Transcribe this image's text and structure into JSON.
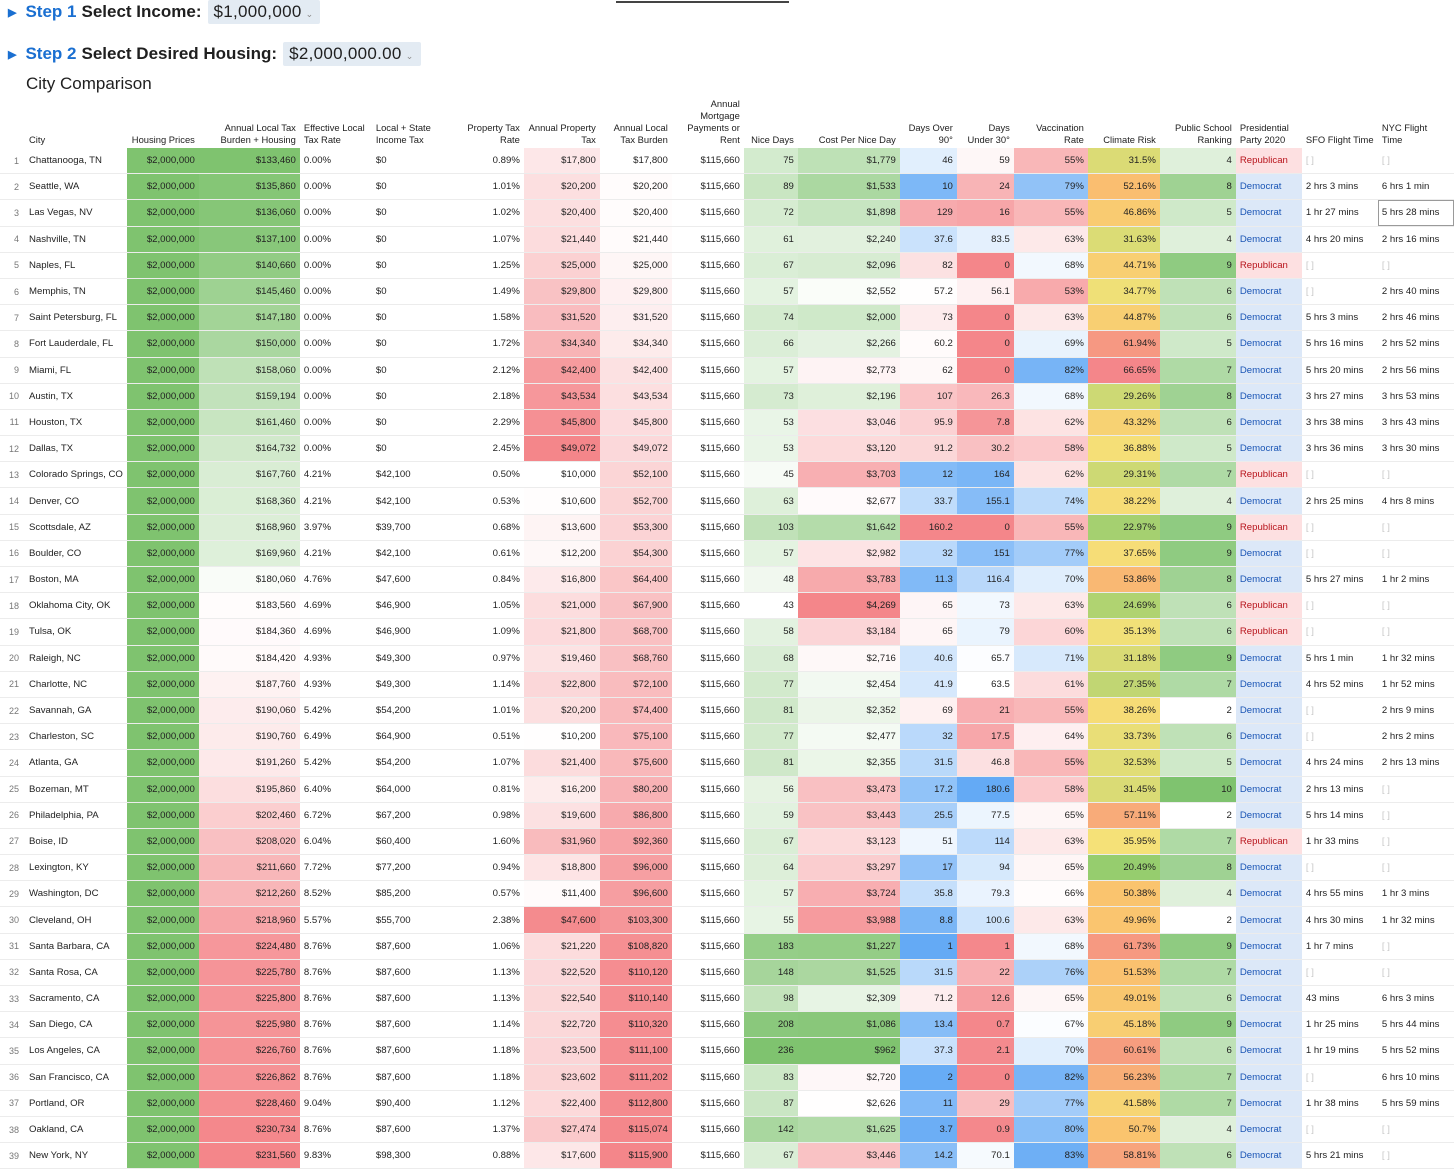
{
  "step1": {
    "label_num": "Step 1",
    "label_text": "Select Income:",
    "value": "$1,000,000"
  },
  "step2": {
    "label_num": "Step 2",
    "label_text": "Select Desired Housing:",
    "value": "$2,000,000.00"
  },
  "section_title": "City Comparison",
  "colors": {
    "blue": "#1a6fd1",
    "democrat": "#1a55b5",
    "republican": "#b8141c",
    "green_max": "#7fc36f",
    "red_max": "#f4868a"
  },
  "headers": [
    "City",
    "Housing Prices",
    "Annual Local Tax Burden + Housing",
    "Effective Local Tax Rate",
    "Local + State Income Tax",
    "Property Tax Rate",
    "Annual Property Tax",
    "Annual Local Tax Burden",
    "Annual Mortgage Payments or Rent",
    "Nice Days",
    "Cost Per Nice Day",
    "Days Over 90°",
    "Days Under 30°",
    "Vaccination Rate",
    "Climate Risk",
    "Public School Ranking",
    "Presidential Party 2020",
    "SFO Flight Time",
    "NYC Flight Time"
  ],
  "rows": [
    [
      "Chattanooga, TN",
      "$2,000,000",
      "$133,460",
      "0.00%",
      "$0",
      "0.89%",
      "$17,800",
      "$17,800",
      "$115,660",
      "75",
      "$1,779",
      "46",
      "59",
      "55%",
      "31.5%",
      "4",
      "Republican",
      "",
      ""
    ],
    [
      "Seattle, WA",
      "$2,000,000",
      "$135,860",
      "0.00%",
      "$0",
      "1.01%",
      "$20,200",
      "$20,200",
      "$115,660",
      "89",
      "$1,533",
      "10",
      "24",
      "79%",
      "52.16%",
      "8",
      "Democrat",
      "2 hrs 3 mins",
      "6 hrs 1 min"
    ],
    [
      "Las Vegas, NV",
      "$2,000,000",
      "$136,060",
      "0.00%",
      "$0",
      "1.02%",
      "$20,400",
      "$20,400",
      "$115,660",
      "72",
      "$1,898",
      "129",
      "16",
      "55%",
      "46.86%",
      "5",
      "Democrat",
      "1 hr 27 mins",
      "5 hrs 28 mins"
    ],
    [
      "Nashville, TN",
      "$2,000,000",
      "$137,100",
      "0.00%",
      "$0",
      "1.07%",
      "$21,440",
      "$21,440",
      "$115,660",
      "61",
      "$2,240",
      "37.6",
      "83.5",
      "63%",
      "31.63%",
      "4",
      "Democrat",
      "4 hrs 20 mins",
      "2 hrs 16 mins"
    ],
    [
      "Naples, FL",
      "$2,000,000",
      "$140,660",
      "0.00%",
      "$0",
      "1.25%",
      "$25,000",
      "$25,000",
      "$115,660",
      "67",
      "$2,096",
      "82",
      "0",
      "68%",
      "44.71%",
      "9",
      "Republican",
      "",
      ""
    ],
    [
      "Memphis, TN",
      "$2,000,000",
      "$145,460",
      "0.00%",
      "$0",
      "1.49%",
      "$29,800",
      "$29,800",
      "$115,660",
      "57",
      "$2,552",
      "57.2",
      "56.1",
      "53%",
      "34.77%",
      "6",
      "Democrat",
      "",
      "2 hrs 40 mins"
    ],
    [
      "Saint Petersburg, FL",
      "$2,000,000",
      "$147,180",
      "0.00%",
      "$0",
      "1.58%",
      "$31,520",
      "$31,520",
      "$115,660",
      "74",
      "$2,000",
      "73",
      "0",
      "63%",
      "44.87%",
      "6",
      "Democrat",
      "5 hrs 3 mins",
      "2 hrs 46 mins"
    ],
    [
      "Fort Lauderdale, FL",
      "$2,000,000",
      "$150,000",
      "0.00%",
      "$0",
      "1.72%",
      "$34,340",
      "$34,340",
      "$115,660",
      "66",
      "$2,266",
      "60.2",
      "0",
      "69%",
      "61.94%",
      "5",
      "Democrat",
      "5 hrs 16 mins",
      "2 hrs 52 mins"
    ],
    [
      "Miami, FL",
      "$2,000,000",
      "$158,060",
      "0.00%",
      "$0",
      "2.12%",
      "$42,400",
      "$42,400",
      "$115,660",
      "57",
      "$2,773",
      "62",
      "0",
      "82%",
      "66.65%",
      "7",
      "Democrat",
      "5 hrs 20 mins",
      "2 hrs 56 mins"
    ],
    [
      "Austin, TX",
      "$2,000,000",
      "$159,194",
      "0.00%",
      "$0",
      "2.18%",
      "$43,534",
      "$43,534",
      "$115,660",
      "73",
      "$2,196",
      "107",
      "26.3",
      "68%",
      "29.26%",
      "8",
      "Democrat",
      "3 hrs 27 mins",
      "3 hrs 53 mins"
    ],
    [
      "Houston, TX",
      "$2,000,000",
      "$161,460",
      "0.00%",
      "$0",
      "2.29%",
      "$45,800",
      "$45,800",
      "$115,660",
      "53",
      "$3,046",
      "95.9",
      "7.8",
      "62%",
      "43.32%",
      "6",
      "Democrat",
      "3 hrs 38 mins",
      "3 hrs 43 mins"
    ],
    [
      "Dallas, TX",
      "$2,000,000",
      "$164,732",
      "0.00%",
      "$0",
      "2.45%",
      "$49,072",
      "$49,072",
      "$115,660",
      "53",
      "$3,120",
      "91.2",
      "30.2",
      "58%",
      "36.88%",
      "5",
      "Democrat",
      "3 hrs 36 mins",
      "3 hrs 30 mins"
    ],
    [
      "Colorado Springs, CO",
      "$2,000,000",
      "$167,760",
      "4.21%",
      "$42,100",
      "0.50%",
      "$10,000",
      "$52,100",
      "$115,660",
      "45",
      "$3,703",
      "12",
      "164",
      "62%",
      "29.31%",
      "7",
      "Republican",
      "",
      ""
    ],
    [
      "Denver, CO",
      "$2,000,000",
      "$168,360",
      "4.21%",
      "$42,100",
      "0.53%",
      "$10,600",
      "$52,700",
      "$115,660",
      "63",
      "$2,677",
      "33.7",
      "155.1",
      "74%",
      "38.22%",
      "4",
      "Democrat",
      "2 hrs 25 mins",
      "4 hrs 8 mins"
    ],
    [
      "Scottsdale, AZ",
      "$2,000,000",
      "$168,960",
      "3.97%",
      "$39,700",
      "0.68%",
      "$13,600",
      "$53,300",
      "$115,660",
      "103",
      "$1,642",
      "160.2",
      "0",
      "55%",
      "22.97%",
      "9",
      "Republican",
      "",
      ""
    ],
    [
      "Boulder, CO",
      "$2,000,000",
      "$169,960",
      "4.21%",
      "$42,100",
      "0.61%",
      "$12,200",
      "$54,300",
      "$115,660",
      "57",
      "$2,982",
      "32",
      "151",
      "77%",
      "37.65%",
      "9",
      "Democrat",
      "",
      ""
    ],
    [
      "Boston, MA",
      "$2,000,000",
      "$180,060",
      "4.76%",
      "$47,600",
      "0.84%",
      "$16,800",
      "$64,400",
      "$115,660",
      "48",
      "$3,783",
      "11.3",
      "116.4",
      "70%",
      "53.86%",
      "8",
      "Democrat",
      "5 hrs 27 mins",
      "1 hr 2 mins"
    ],
    [
      "Oklahoma City, OK",
      "$2,000,000",
      "$183,560",
      "4.69%",
      "$46,900",
      "1.05%",
      "$21,000",
      "$67,900",
      "$115,660",
      "43",
      "$4,269",
      "65",
      "73",
      "63%",
      "24.69%",
      "6",
      "Republican",
      "",
      ""
    ],
    [
      "Tulsa, OK",
      "$2,000,000",
      "$184,360",
      "4.69%",
      "$46,900",
      "1.09%",
      "$21,800",
      "$68,700",
      "$115,660",
      "58",
      "$3,184",
      "65",
      "79",
      "60%",
      "35.13%",
      "6",
      "Republican",
      "",
      ""
    ],
    [
      "Raleigh, NC",
      "$2,000,000",
      "$184,420",
      "4.93%",
      "$49,300",
      "0.97%",
      "$19,460",
      "$68,760",
      "$115,660",
      "68",
      "$2,716",
      "40.6",
      "65.7",
      "71%",
      "31.18%",
      "9",
      "Democrat",
      "5 hrs 1 min",
      "1 hr 32 mins"
    ],
    [
      "Charlotte, NC",
      "$2,000,000",
      "$187,760",
      "4.93%",
      "$49,300",
      "1.14%",
      "$22,800",
      "$72,100",
      "$115,660",
      "77",
      "$2,454",
      "41.9",
      "63.5",
      "61%",
      "27.35%",
      "7",
      "Democrat",
      "4 hrs 52 mins",
      "1 hr 52 mins"
    ],
    [
      "Savannah, GA",
      "$2,000,000",
      "$190,060",
      "5.42%",
      "$54,200",
      "1.01%",
      "$20,200",
      "$74,400",
      "$115,660",
      "81",
      "$2,352",
      "69",
      "21",
      "55%",
      "38.26%",
      "2",
      "Democrat",
      "",
      "2 hrs 9 mins"
    ],
    [
      "Charleston, SC",
      "$2,000,000",
      "$190,760",
      "6.49%",
      "$64,900",
      "0.51%",
      "$10,200",
      "$75,100",
      "$115,660",
      "77",
      "$2,477",
      "32",
      "17.5",
      "64%",
      "33.73%",
      "6",
      "Democrat",
      "",
      "2 hrs 2 mins"
    ],
    [
      "Atlanta, GA",
      "$2,000,000",
      "$191,260",
      "5.42%",
      "$54,200",
      "1.07%",
      "$21,400",
      "$75,600",
      "$115,660",
      "81",
      "$2,355",
      "31.5",
      "46.8",
      "55%",
      "32.53%",
      "5",
      "Democrat",
      "4 hrs 24 mins",
      "2 hrs 13 mins"
    ],
    [
      "Bozeman, MT",
      "$2,000,000",
      "$195,860",
      "6.40%",
      "$64,000",
      "0.81%",
      "$16,200",
      "$80,200",
      "$115,660",
      "56",
      "$3,473",
      "17.2",
      "180.6",
      "58%",
      "31.45%",
      "10",
      "Democrat",
      "2 hrs 13 mins",
      ""
    ],
    [
      "Philadelphia, PA",
      "$2,000,000",
      "$202,460",
      "6.72%",
      "$67,200",
      "0.98%",
      "$19,600",
      "$86,800",
      "$115,660",
      "59",
      "$3,443",
      "25.5",
      "77.5",
      "65%",
      "57.11%",
      "2",
      "Democrat",
      "5 hrs 14 mins",
      ""
    ],
    [
      "Boise, ID",
      "$2,000,000",
      "$208,020",
      "6.04%",
      "$60,400",
      "1.60%",
      "$31,960",
      "$92,360",
      "$115,660",
      "67",
      "$3,123",
      "51",
      "114",
      "63%",
      "35.95%",
      "7",
      "Republican",
      "1 hr 33 mins",
      ""
    ],
    [
      "Lexington, KY",
      "$2,000,000",
      "$211,660",
      "7.72%",
      "$77,200",
      "0.94%",
      "$18,800",
      "$96,000",
      "$115,660",
      "64",
      "$3,297",
      "17",
      "94",
      "65%",
      "20.49%",
      "8",
      "Democrat",
      "",
      ""
    ],
    [
      "Washington, DC",
      "$2,000,000",
      "$212,260",
      "8.52%",
      "$85,200",
      "0.57%",
      "$11,400",
      "$96,600",
      "$115,660",
      "57",
      "$3,724",
      "35.8",
      "79.3",
      "66%",
      "50.38%",
      "4",
      "Democrat",
      "4 hrs 55 mins",
      "1 hr 3 mins"
    ],
    [
      "Cleveland, OH",
      "$2,000,000",
      "$218,960",
      "5.57%",
      "$55,700",
      "2.38%",
      "$47,600",
      "$103,300",
      "$115,660",
      "55",
      "$3,988",
      "8.8",
      "100.6",
      "63%",
      "49.96%",
      "2",
      "Democrat",
      "4 hrs 30 mins",
      "1 hr 32 mins"
    ],
    [
      "Santa Barbara, CA",
      "$2,000,000",
      "$224,480",
      "8.76%",
      "$87,600",
      "1.06%",
      "$21,220",
      "$108,820",
      "$115,660",
      "183",
      "$1,227",
      "1",
      "1",
      "68%",
      "61.73%",
      "9",
      "Democrat",
      "1 hr 7 mins",
      ""
    ],
    [
      "Santa Rosa, CA",
      "$2,000,000",
      "$225,780",
      "8.76%",
      "$87,600",
      "1.13%",
      "$22,520",
      "$110,120",
      "$115,660",
      "148",
      "$1,525",
      "31.5",
      "22",
      "76%",
      "51.53%",
      "7",
      "Democrat",
      "",
      ""
    ],
    [
      "Sacramento, CA",
      "$2,000,000",
      "$225,800",
      "8.76%",
      "$87,600",
      "1.13%",
      "$22,540",
      "$110,140",
      "$115,660",
      "98",
      "$2,309",
      "71.2",
      "12.6",
      "65%",
      "49.01%",
      "6",
      "Democrat",
      "43 mins",
      "6 hrs 3 mins"
    ],
    [
      "San Diego, CA",
      "$2,000,000",
      "$225,980",
      "8.76%",
      "$87,600",
      "1.14%",
      "$22,720",
      "$110,320",
      "$115,660",
      "208",
      "$1,086",
      "13.4",
      "0.7",
      "67%",
      "45.18%",
      "9",
      "Democrat",
      "1 hr 25 mins",
      "5 hrs 44 mins"
    ],
    [
      "Los Angeles, CA",
      "$2,000,000",
      "$226,760",
      "8.76%",
      "$87,600",
      "1.18%",
      "$23,500",
      "$111,100",
      "$115,660",
      "236",
      "$962",
      "37.3",
      "2.1",
      "70%",
      "60.61%",
      "6",
      "Democrat",
      "1 hr 19 mins",
      "5 hrs 52 mins"
    ],
    [
      "San Francisco, CA",
      "$2,000,000",
      "$226,862",
      "8.76%",
      "$87,600",
      "1.18%",
      "$23,602",
      "$111,202",
      "$115,660",
      "83",
      "$2,720",
      "2",
      "0",
      "82%",
      "56.23%",
      "7",
      "Democrat",
      "",
      "6 hrs 10 mins"
    ],
    [
      "Portland, OR",
      "$2,000,000",
      "$228,460",
      "9.04%",
      "$90,400",
      "1.12%",
      "$22,400",
      "$112,800",
      "$115,660",
      "87",
      "$2,626",
      "11",
      "29",
      "77%",
      "41.58%",
      "7",
      "Democrat",
      "1 hr 38 mins",
      "5 hrs 59 mins"
    ],
    [
      "Oakland, CA",
      "$2,000,000",
      "$230,734",
      "8.76%",
      "$87,600",
      "1.37%",
      "$27,474",
      "$115,074",
      "$115,660",
      "142",
      "$1,625",
      "3.7",
      "0.9",
      "80%",
      "50.7%",
      "4",
      "Democrat",
      "",
      ""
    ],
    [
      "New York, NY",
      "$2,000,000",
      "$231,560",
      "9.83%",
      "$98,300",
      "0.88%",
      "$17,600",
      "$115,900",
      "$115,660",
      "67",
      "$3,446",
      "14.2",
      "70.1",
      "83%",
      "58.81%",
      "6",
      "Democrat",
      "5 hrs 21 mins",
      ""
    ]
  ]
}
